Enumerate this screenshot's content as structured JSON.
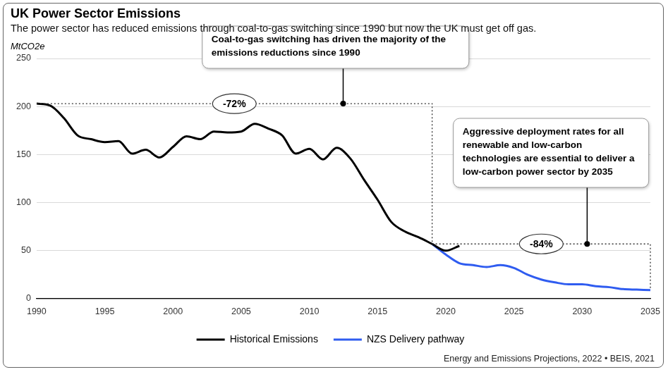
{
  "chart_data": {
    "type": "line",
    "title": "UK Power Sector Emissions",
    "subtitle": "The power sector has reduced emissions through coal-to-gas switching since 1990 but now the UK must get off gas.",
    "y_label": "MtCO2e",
    "source": "Energy and Emissions Projections, 2022 • BEIS, 2021",
    "x": [
      1990,
      1991,
      1992,
      1993,
      1994,
      1995,
      1996,
      1997,
      1998,
      1999,
      2000,
      2001,
      2002,
      2003,
      2004,
      2005,
      2006,
      2007,
      2008,
      2009,
      2010,
      2011,
      2012,
      2013,
      2014,
      2015,
      2016,
      2017,
      2018,
      2019,
      2020,
      2021,
      2022,
      2023,
      2024,
      2025,
      2026,
      2027,
      2028,
      2029,
      2030,
      2031,
      2032,
      2033,
      2034,
      2035
    ],
    "series": [
      {
        "name": "Historical Emissions",
        "color": "#000000",
        "values": [
          203,
          201,
          188,
          170,
          166,
          163,
          164,
          151,
          155,
          147,
          158,
          169,
          166,
          174,
          173,
          174,
          182,
          177,
          170,
          151,
          156,
          145,
          157,
          146,
          124,
          103,
          80,
          70,
          64,
          57,
          50,
          55,
          null,
          null,
          null,
          null,
          null,
          null,
          null,
          null,
          null,
          null,
          null,
          null,
          null,
          null
        ]
      },
      {
        "name": "NZS Delivery pathway",
        "color": "#2f5cf0",
        "values": [
          null,
          null,
          null,
          null,
          null,
          null,
          null,
          null,
          null,
          null,
          null,
          null,
          null,
          null,
          null,
          null,
          null,
          null,
          null,
          null,
          null,
          null,
          null,
          null,
          null,
          null,
          null,
          null,
          null,
          57,
          46,
          37,
          35,
          33,
          35,
          32,
          25,
          20,
          17,
          15,
          15,
          13,
          12,
          10,
          9.5,
          9
        ]
      }
    ],
    "xlim": [
      1990,
      2035
    ],
    "xticks": [
      1990,
      1995,
      2000,
      2005,
      2010,
      2015,
      2020,
      2025,
      2030,
      2035
    ],
    "ylim": [
      0,
      250
    ],
    "yticks": [
      0,
      50,
      100,
      150,
      200,
      250
    ],
    "grid": true,
    "legend": "bottom",
    "annotations": [
      {
        "label": "-72%",
        "text": "Coal-to-gas switching has driven the majority of the emissions reductions since 1990",
        "from": 1990,
        "to": 2019
      },
      {
        "label": "-84%",
        "text": "Aggressive deployment rates for all renewable and low-carbon technologies are essential to deliver a low-carbon power sector by 2035",
        "from": 2019,
        "to": 2035
      }
    ]
  }
}
